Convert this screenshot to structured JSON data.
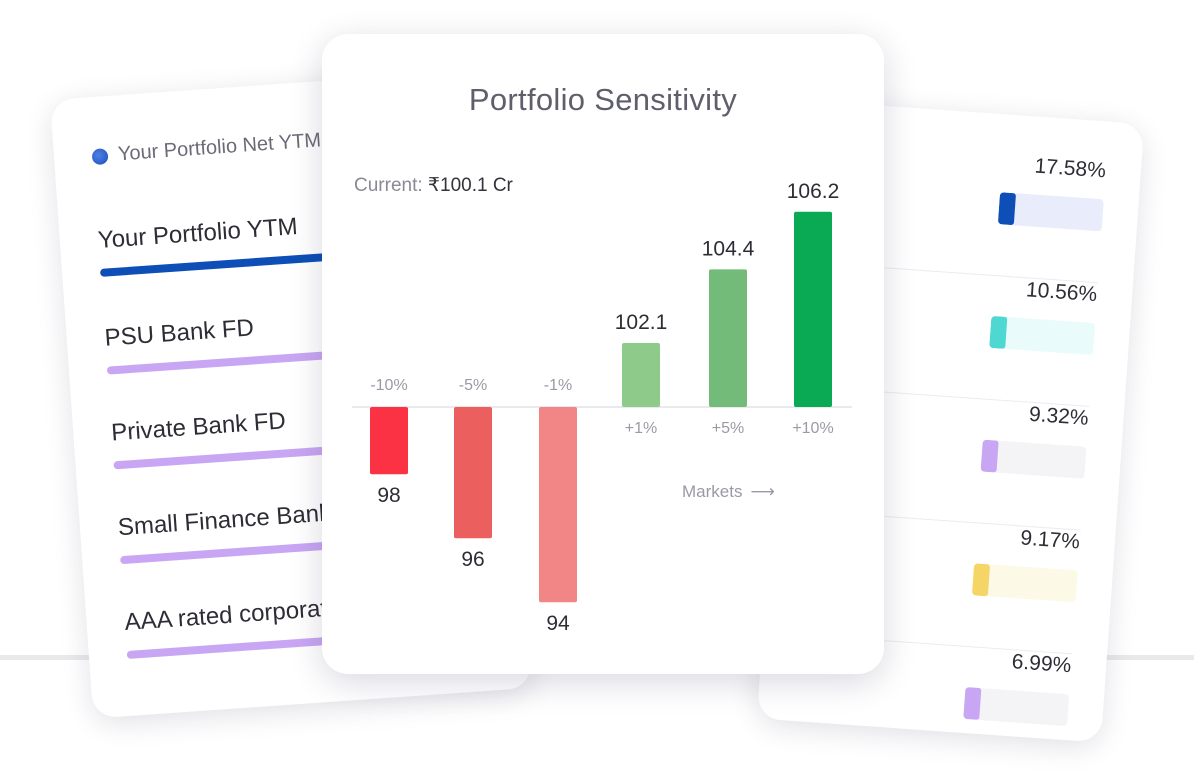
{
  "left_card": {
    "header": "Your Portfolio Net YTM",
    "items": [
      {
        "label": "Your Portfolio YTM",
        "color": "#0d4fb6"
      },
      {
        "label": "PSU Bank FD",
        "color": "#c9a6f4"
      },
      {
        "label": "Private Bank FD",
        "color": "#c9a6f4"
      },
      {
        "label": "Small Finance Bank",
        "color": "#c9a6f4"
      },
      {
        "label": "AAA rated corporate",
        "color": "#c9a6f4"
      }
    ]
  },
  "right_card": {
    "items": [
      {
        "value": "17.58%",
        "fill": "#0d4fb6",
        "track": "#e8ecfb"
      },
      {
        "value": "10.56%",
        "fill": "#4fd8d2",
        "track": "#e9fbfb"
      },
      {
        "value": "9.32%",
        "fill": "#c9a6f4",
        "track": "#f4f4f7"
      },
      {
        "value": "9.17%",
        "fill": "#f4d565",
        "track": "#fdf9e7"
      },
      {
        "value": "6.99%",
        "fill": "#c9a6f4",
        "track": "#f4f4f7"
      }
    ]
  },
  "center_card": {
    "current_label": "Current:",
    "current_value": "₹100.1 Cr",
    "markets_label": "Markets",
    "markets_arrow": "⟶"
  },
  "chart_data": {
    "type": "bar",
    "title": "Portfolio Sensitivity",
    "baseline": 100.1,
    "categories": [
      "-10%",
      "-5%",
      "-1%",
      "+1%",
      "+5%",
      "+10%"
    ],
    "values": [
      98,
      96,
      94,
      102.1,
      104.4,
      106.2
    ],
    "value_labels": [
      "98",
      "96",
      "94",
      "102.1",
      "104.4",
      "106.2"
    ],
    "colors": [
      "#fb3244",
      "#ec5f5f",
      "#f28585",
      "#8ecb8b",
      "#72bb78",
      "#0aaa54"
    ],
    "xlabel": "Markets",
    "ylabel": ""
  }
}
